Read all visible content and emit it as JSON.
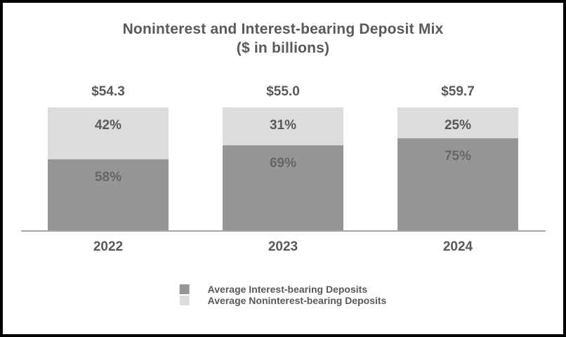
{
  "chart_data": {
    "type": "bar",
    "subtype": "stacked-100-percent",
    "title": "Noninterest and Interest-bearing Deposit Mix",
    "subtitle": "($ in billions)",
    "categories": [
      "2022",
      "2023",
      "2024"
    ],
    "totals": [
      "$54.3",
      "$55.0",
      "$59.7"
    ],
    "total_values": [
      54.3,
      55.0,
      59.7
    ],
    "series": [
      {
        "name": "Average Interest-bearing Deposits",
        "color": "#969696",
        "values": [
          58,
          69,
          75
        ],
        "labels": [
          "58%",
          "69%",
          "75%"
        ],
        "position": "bottom"
      },
      {
        "name": "Average Noninterest-bearing Deposits",
        "color": "#dcdcdc",
        "values": [
          42,
          31,
          25
        ],
        "labels": [
          "42%",
          "31%",
          "25%"
        ],
        "position": "top"
      }
    ],
    "ylabel": "",
    "xlabel": "",
    "grid": false,
    "legend_position": "bottom",
    "axis_line_color": "#a6a6a6",
    "text_color": "#595959"
  }
}
